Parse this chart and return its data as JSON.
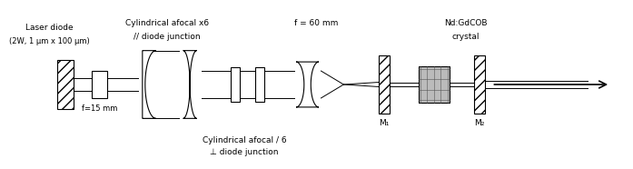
{
  "fig_width": 6.97,
  "fig_height": 1.86,
  "dpi": 100,
  "bg_color": "#ffffff",
  "lc": "#000000",
  "labels": {
    "laser_diode_title": "Laser diode",
    "laser_diode_subtitle": "(2W, 1 μm x 100 μm)",
    "f15": "f=15 mm",
    "cyl_afocal_x6": "Cylindrical afocal x6",
    "cyl_parallel": "// diode junction",
    "f60": "f = 60 mm",
    "nd_gdcob": "Nd:GdCOB",
    "crystal": "crystal",
    "cyl_afocal_div6": "Cylindrical afocal / 6",
    "perp": "⊥ diode junction",
    "m1": "M₁",
    "m2": "M₂"
  }
}
